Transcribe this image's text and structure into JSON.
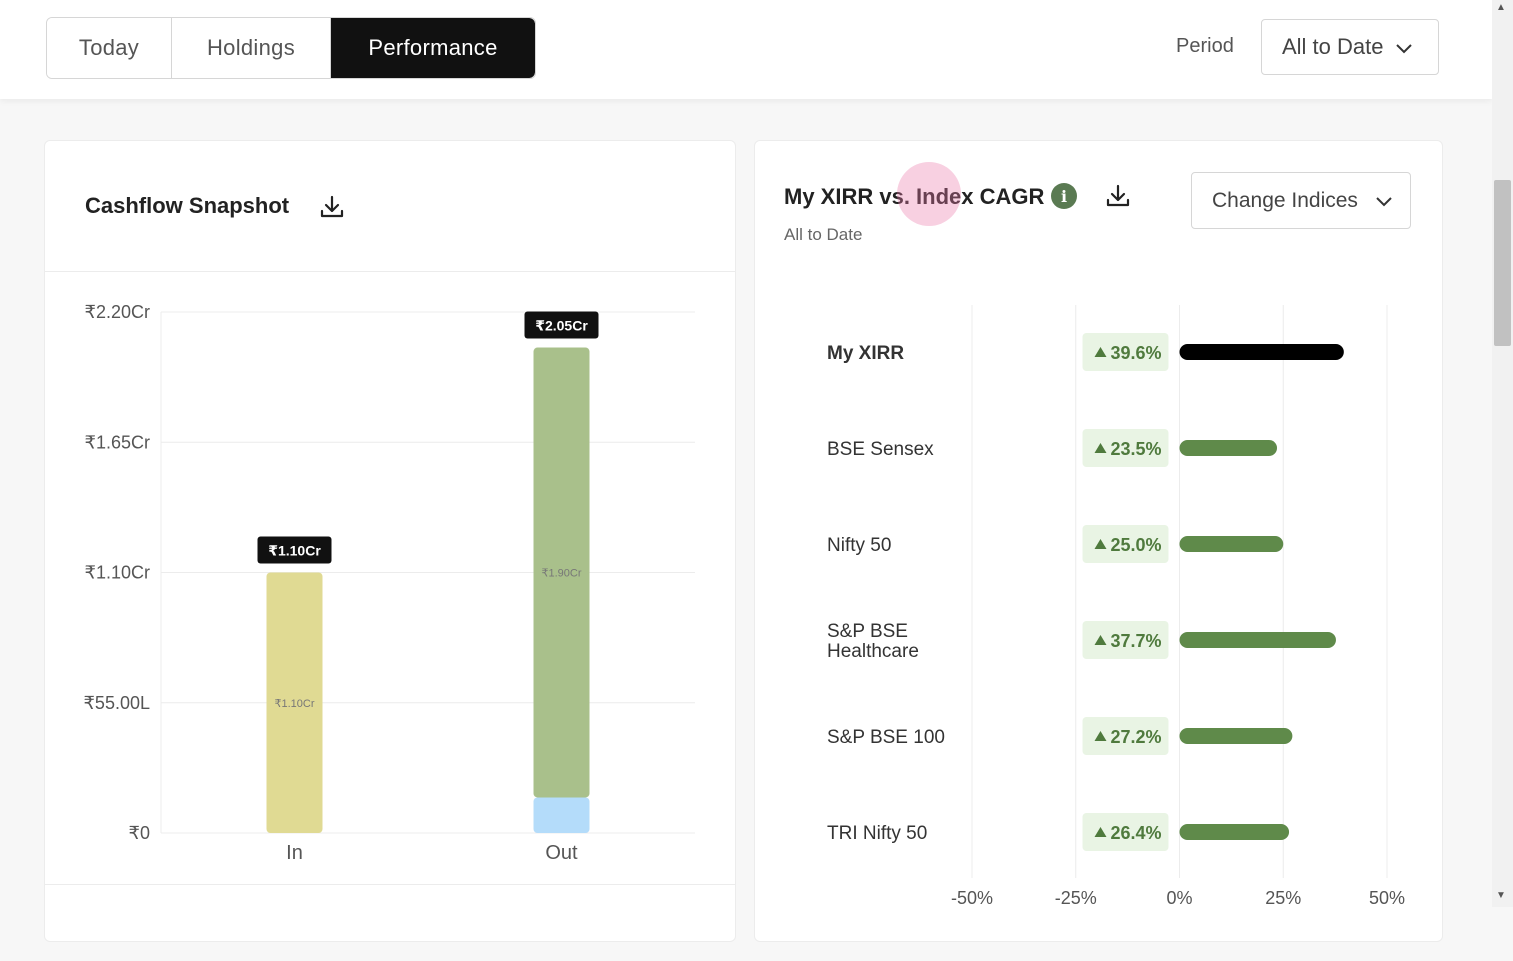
{
  "tabs": [
    {
      "label": "Today",
      "active": false
    },
    {
      "label": "Holdings",
      "active": false
    },
    {
      "label": "Performance",
      "active": true
    }
  ],
  "period": {
    "label": "Period",
    "value": "All to Date"
  },
  "cashflow": {
    "title": "Cashflow Snapshot",
    "download_icon": "download-icon",
    "chart_data": {
      "type": "bar",
      "stacked": true,
      "categories": [
        "In",
        "Out"
      ],
      "y_ticks": [
        "₹0",
        "₹55.00L",
        "₹1.10Cr",
        "₹1.65Cr",
        "₹2.20Cr"
      ],
      "ylim_cr": [
        0,
        2.2
      ],
      "bars": [
        {
          "category": "In",
          "total_label": "₹1.10Cr",
          "total_cr": 1.1,
          "segments": [
            {
              "value_cr": 1.1,
              "label": "₹1.10Cr",
              "color": "#e0da93"
            }
          ]
        },
        {
          "category": "Out",
          "total_label": "₹2.05Cr",
          "total_cr": 2.05,
          "segments": [
            {
              "value_cr": 0.15,
              "label": "",
              "color": "#b4dcfa"
            },
            {
              "value_cr": 1.9,
              "label": "₹1.90Cr",
              "color": "#a9c08b"
            }
          ]
        }
      ],
      "grid": true
    }
  },
  "xirr": {
    "title": "My XIRR vs. Index CAGR",
    "subtitle": "All to Date",
    "info_icon": "info-icon",
    "info_glyph": "i",
    "download_icon": "download-icon",
    "change_indices_label": "Change Indices",
    "chart_data": {
      "type": "bar",
      "orientation": "horizontal",
      "xlim": [
        -50,
        50
      ],
      "x_ticks": [
        -50,
        -25,
        0,
        25,
        50
      ],
      "x_tick_labels": [
        "-50%",
        "-25%",
        "0%",
        "25%",
        "50%"
      ],
      "grid": true,
      "rows": [
        {
          "label": [
            "My XIRR"
          ],
          "value": 39.6,
          "value_label": "39.6%",
          "bold": true,
          "color": "#000000"
        },
        {
          "label": [
            "BSE Sensex"
          ],
          "value": 23.5,
          "value_label": "23.5%",
          "bold": false,
          "color": "#5f8a4a"
        },
        {
          "label": [
            "Nifty 50"
          ],
          "value": 25.0,
          "value_label": "25.0%",
          "bold": false,
          "color": "#5f8a4a"
        },
        {
          "label": [
            "S&P BSE",
            "Healthcare"
          ],
          "value": 37.7,
          "value_label": "37.7%",
          "bold": false,
          "color": "#5f8a4a"
        },
        {
          "label": [
            "S&P BSE 100"
          ],
          "value": 27.2,
          "value_label": "27.2%",
          "bold": false,
          "color": "#5f8a4a"
        },
        {
          "label": [
            "TRI Nifty 50"
          ],
          "value": 26.4,
          "value_label": "26.4%",
          "bold": false,
          "color": "#5f8a4a"
        }
      ]
    }
  },
  "colors": {
    "positive_badge_bg": "#e9f4e4",
    "positive_text": "#4f7a3d"
  }
}
